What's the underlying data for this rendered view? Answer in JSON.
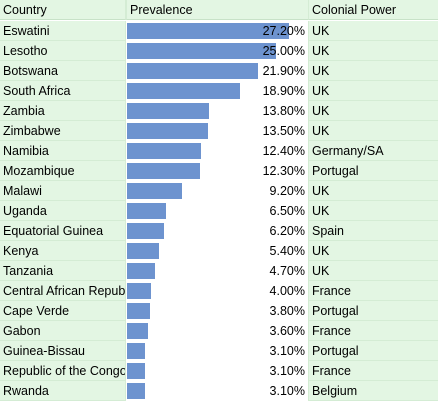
{
  "headers": {
    "country": "Country",
    "prevalence": "Prevalence",
    "colonial": "Colonial Power"
  },
  "bar_color": "#6d93cf",
  "grid_fill": "#e3f6e3",
  "rows": [
    {
      "country": "Eswatini",
      "value": 27.2,
      "label": "27.20%",
      "colonial": "UK"
    },
    {
      "country": "Lesotho",
      "value": 25.0,
      "label": "25.00%",
      "colonial": "UK"
    },
    {
      "country": "Botswana",
      "value": 21.9,
      "label": "21.90%",
      "colonial": "UK"
    },
    {
      "country": "South Africa",
      "value": 18.9,
      "label": "18.90%",
      "colonial": "UK"
    },
    {
      "country": "Zambia",
      "value": 13.8,
      "label": "13.80%",
      "colonial": "UK"
    },
    {
      "country": "Zimbabwe",
      "value": 13.5,
      "label": "13.50%",
      "colonial": "UK"
    },
    {
      "country": "Namibia",
      "value": 12.4,
      "label": "12.40%",
      "colonial": "Germany/SA"
    },
    {
      "country": "Mozambique",
      "value": 12.3,
      "label": "12.30%",
      "colonial": "Portugal"
    },
    {
      "country": "Malawi",
      "value": 9.2,
      "label": "9.20%",
      "colonial": "UK"
    },
    {
      "country": "Uganda",
      "value": 6.5,
      "label": "6.50%",
      "colonial": "UK"
    },
    {
      "country": "Equatorial Guinea",
      "value": 6.2,
      "label": "6.20%",
      "colonial": "Spain"
    },
    {
      "country": "Kenya",
      "value": 5.4,
      "label": "5.40%",
      "colonial": "UK"
    },
    {
      "country": "Tanzania",
      "value": 4.7,
      "label": "4.70%",
      "colonial": "UK"
    },
    {
      "country": "Central African Republic",
      "value": 4.0,
      "label": "4.00%",
      "colonial": "France"
    },
    {
      "country": "Cape Verde",
      "value": 3.8,
      "label": "3.80%",
      "colonial": "Portugal"
    },
    {
      "country": "Gabon",
      "value": 3.6,
      "label": "3.60%",
      "colonial": "France"
    },
    {
      "country": "Guinea-Bissau",
      "value": 3.1,
      "label": "3.10%",
      "colonial": "Portugal"
    },
    {
      "country": "Republic of the Congo",
      "value": 3.1,
      "label": "3.10%",
      "colonial": "France"
    },
    {
      "country": "Rwanda",
      "value": 3.1,
      "label": "3.10%",
      "colonial": "Belgium"
    }
  ]
}
